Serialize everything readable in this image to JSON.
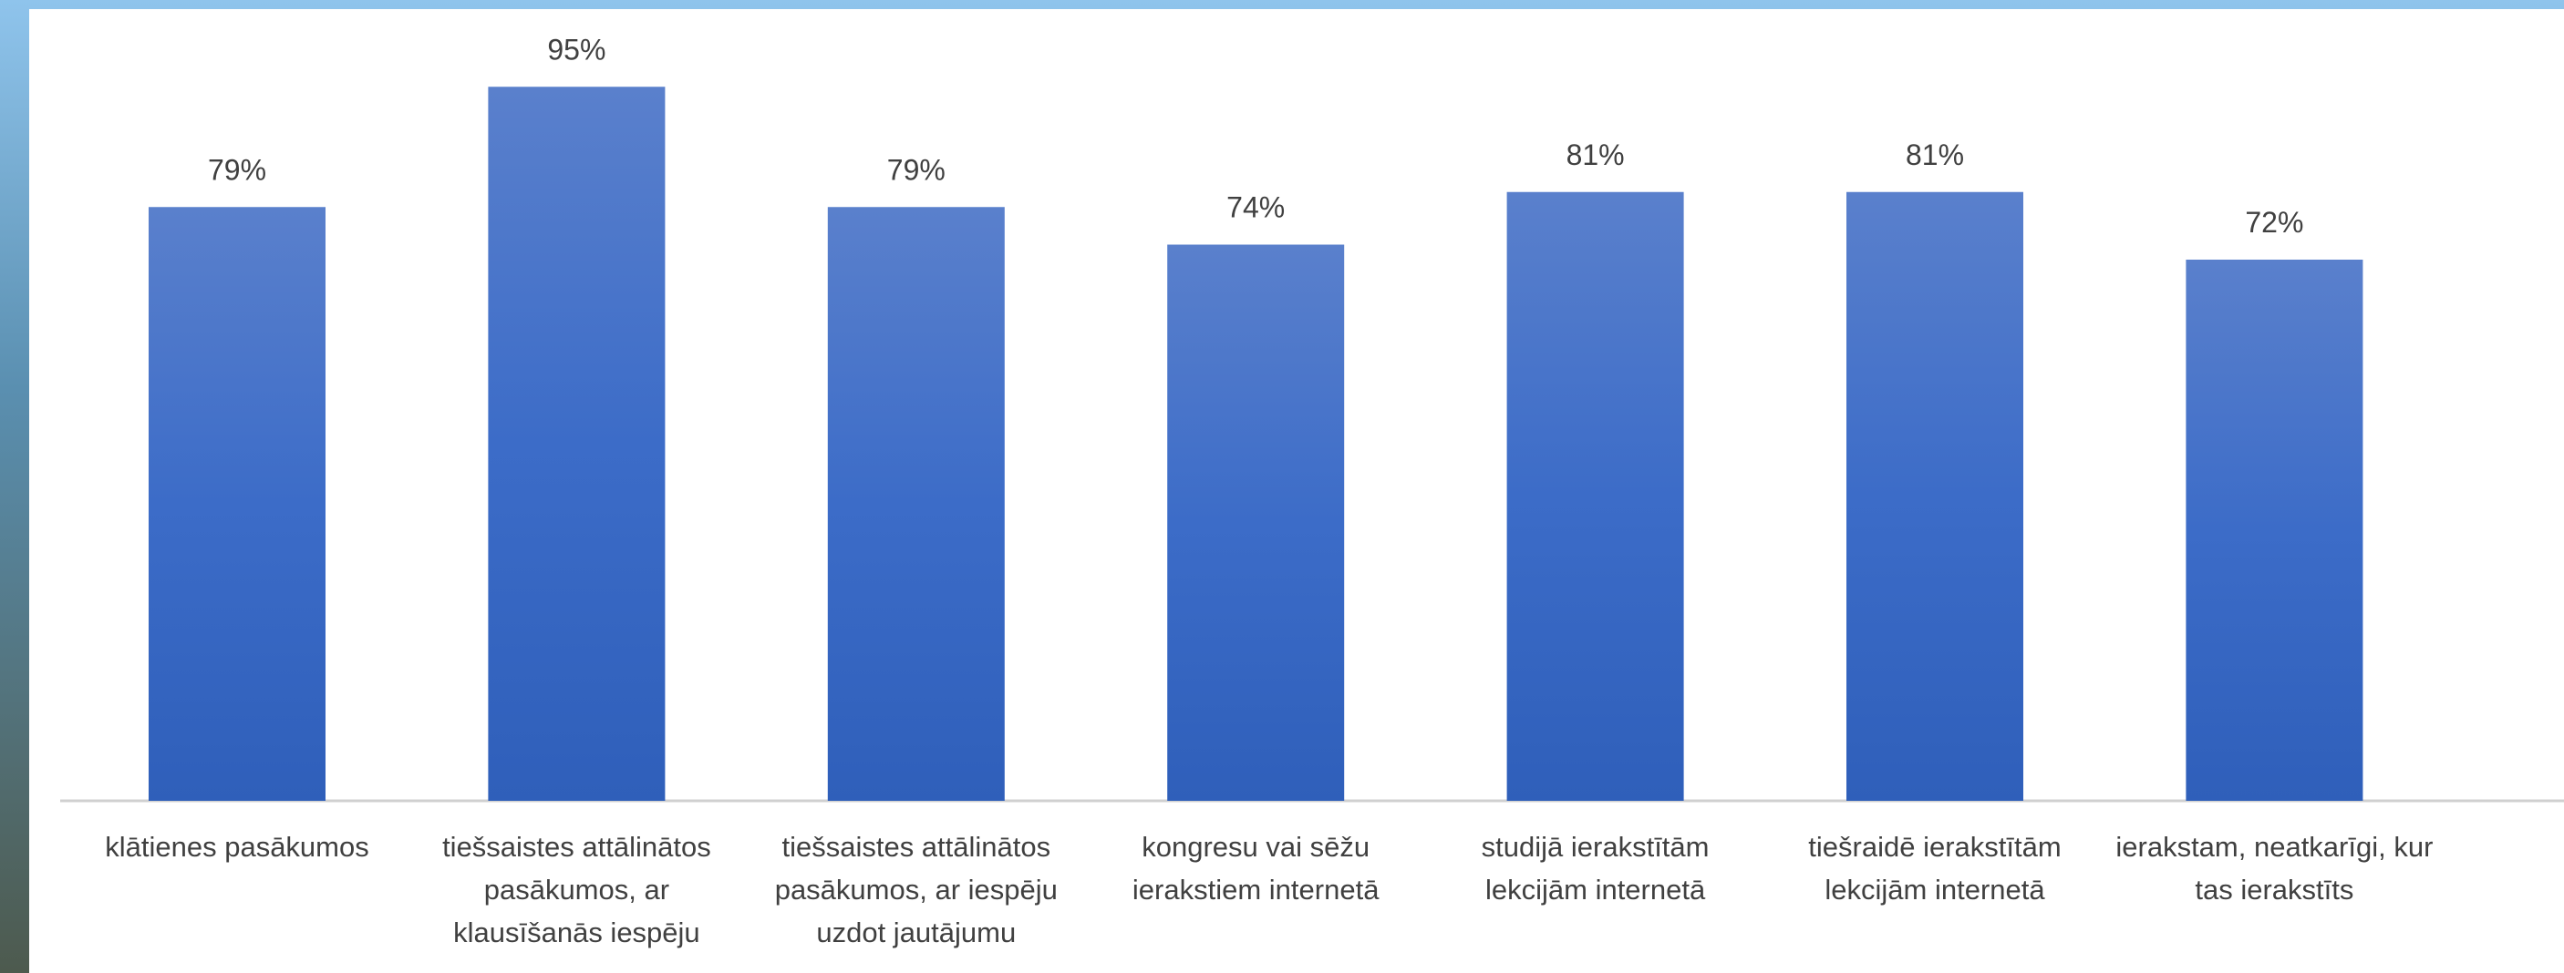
{
  "chart_data": {
    "type": "bar",
    "categories": [
      "klātienes pasākumos",
      "tiešsaistes attālinātos pasākumos, ar klausīšanās iespēju",
      "tiešsaistes attālinātos pasākumos, ar iespēju uzdot jautājumu",
      "kongresu vai sēžu ierakstiem internetā",
      "studijā ierakstītām lekcijām internetā",
      "tiešraidē ierakstītām lekcijām internetā",
      "ierakstam, neatkarīgi, kur tas ierakstīts"
    ],
    "values": [
      79,
      95,
      79,
      74,
      81,
      81,
      72
    ],
    "value_labels": [
      "79%",
      "95%",
      "79%",
      "74%",
      "81%",
      "81%",
      "72%"
    ],
    "color": "#4472c4",
    "ylim": [
      0,
      100
    ]
  }
}
